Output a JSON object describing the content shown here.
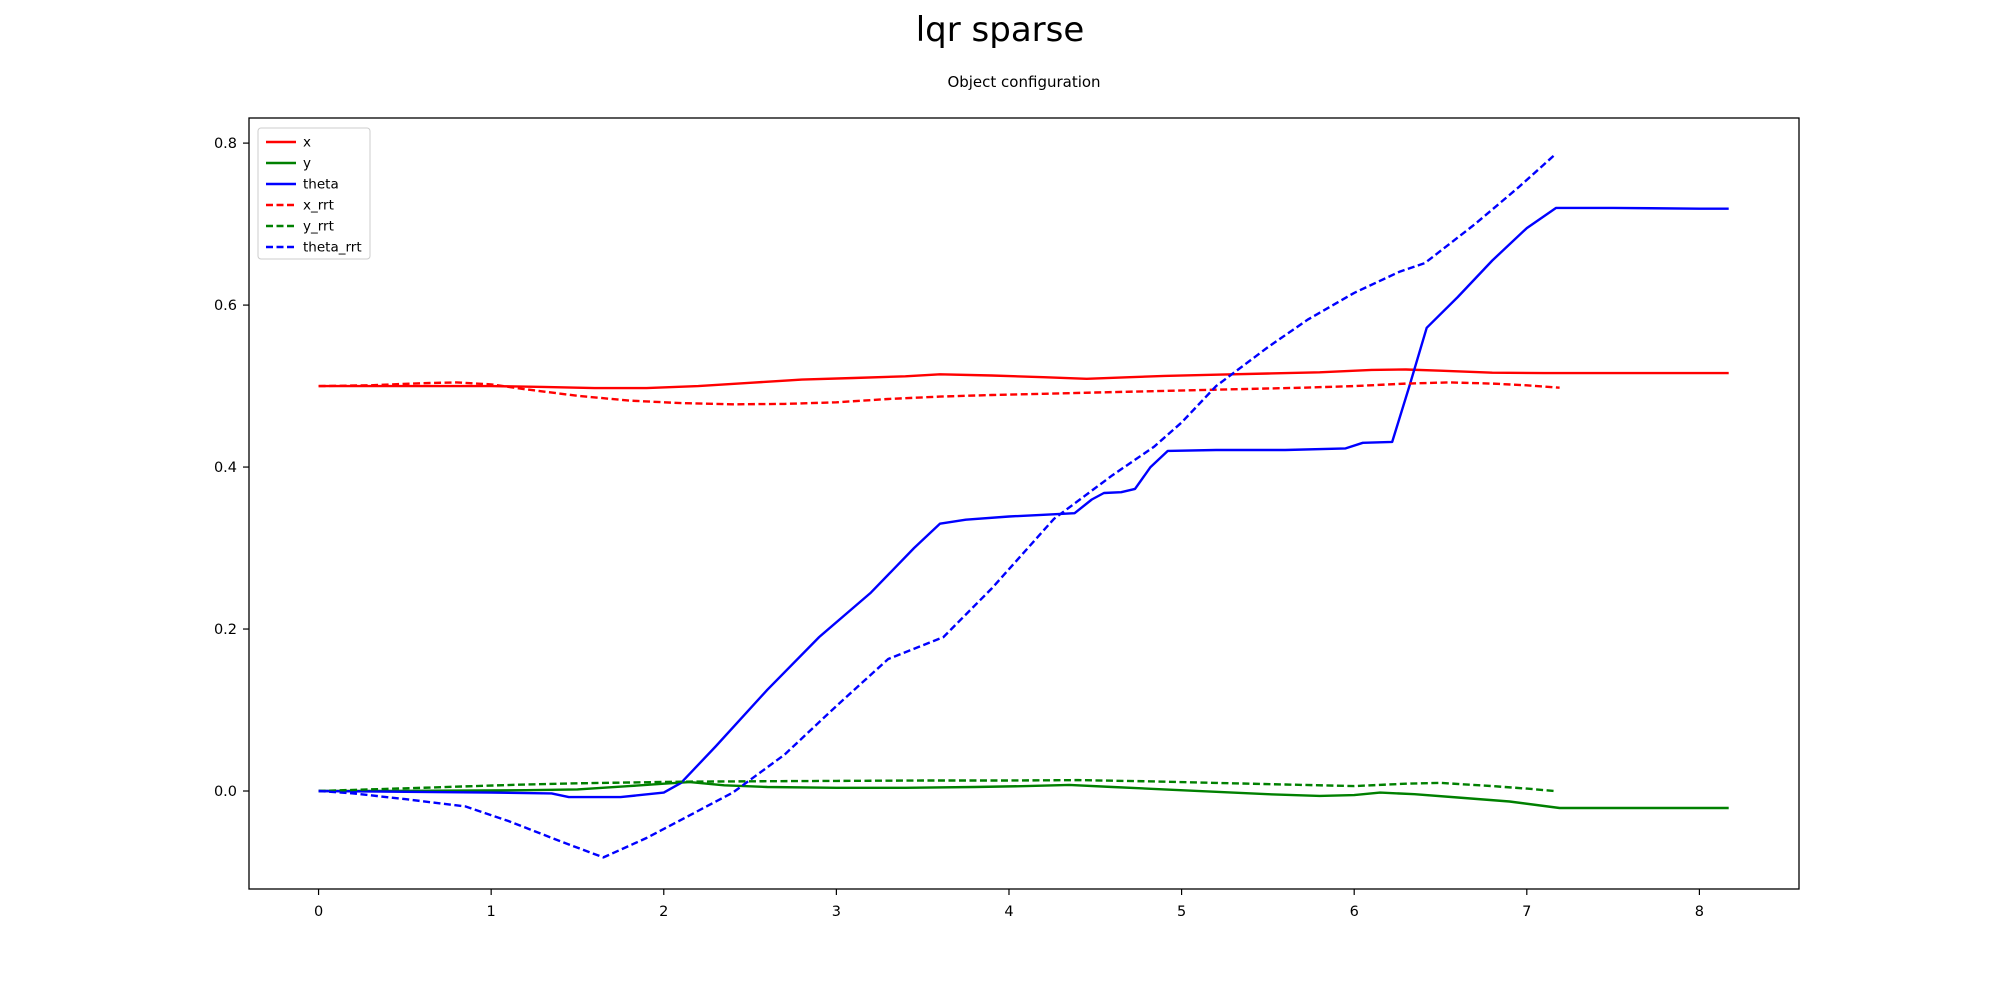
{
  "figure": {
    "title": "lqr sparse"
  },
  "chart_data": {
    "type": "line",
    "title": "Object configuration",
    "xlabel": "",
    "ylabel": "",
    "grid": false,
    "xlim": [
      -0.403,
      8.577
    ],
    "ylim": [
      -0.121,
      0.831
    ],
    "xticks": {
      "values": [
        0,
        1,
        2,
        3,
        4,
        5,
        6,
        7,
        8
      ],
      "labels": [
        "0",
        "1",
        "2",
        "3",
        "4",
        "5",
        "6",
        "7",
        "8"
      ]
    },
    "yticks": {
      "values": [
        0.0,
        0.2,
        0.4,
        0.6,
        0.8
      ],
      "labels": [
        "0.0",
        "0.2",
        "0.4",
        "0.6",
        "0.8"
      ]
    },
    "legend": {
      "position": "upper left"
    },
    "series": [
      {
        "name": "x",
        "color": "#ff0000",
        "dash": "solid",
        "points": [
          [
            0,
            0.5
          ],
          [
            0.5,
            0.5
          ],
          [
            1.0,
            0.5
          ],
          [
            1.3,
            0.499
          ],
          [
            1.6,
            0.4975
          ],
          [
            1.9,
            0.4975
          ],
          [
            2.2,
            0.5
          ],
          [
            2.5,
            0.504
          ],
          [
            2.8,
            0.508
          ],
          [
            3.1,
            0.51
          ],
          [
            3.4,
            0.512
          ],
          [
            3.6,
            0.5145
          ],
          [
            3.9,
            0.513
          ],
          [
            4.2,
            0.511
          ],
          [
            4.45,
            0.509
          ],
          [
            4.7,
            0.511
          ],
          [
            4.9,
            0.5125
          ],
          [
            5.2,
            0.514
          ],
          [
            5.5,
            0.5155
          ],
          [
            5.8,
            0.517
          ],
          [
            6.1,
            0.52
          ],
          [
            6.3,
            0.5205
          ],
          [
            6.5,
            0.519
          ],
          [
            6.8,
            0.5165
          ],
          [
            7.1,
            0.516
          ],
          [
            7.6,
            0.516
          ],
          [
            8.17,
            0.516
          ]
        ]
      },
      {
        "name": "y",
        "color": "#008000",
        "dash": "solid",
        "points": [
          [
            0,
            0.0
          ],
          [
            0.4,
            0.0
          ],
          [
            0.8,
            0.0005
          ],
          [
            1.2,
            0.001
          ],
          [
            1.5,
            0.002
          ],
          [
            1.8,
            0.006
          ],
          [
            2.0,
            0.009
          ],
          [
            2.15,
            0.011
          ],
          [
            2.35,
            0.007
          ],
          [
            2.6,
            0.005
          ],
          [
            3.0,
            0.004
          ],
          [
            3.4,
            0.004
          ],
          [
            3.8,
            0.005
          ],
          [
            4.1,
            0.006
          ],
          [
            4.35,
            0.0075
          ],
          [
            4.6,
            0.005
          ],
          [
            4.9,
            0.002
          ],
          [
            5.2,
            -0.001
          ],
          [
            5.5,
            -0.004
          ],
          [
            5.8,
            -0.006
          ],
          [
            6.0,
            -0.005
          ],
          [
            6.15,
            -0.002
          ],
          [
            6.35,
            -0.004
          ],
          [
            6.6,
            -0.008
          ],
          [
            6.9,
            -0.013
          ],
          [
            7.19,
            -0.021
          ],
          [
            7.6,
            -0.021
          ],
          [
            8.17,
            -0.021
          ]
        ]
      },
      {
        "name": "theta",
        "color": "#0000ff",
        "dash": "solid",
        "points": [
          [
            0,
            0.0
          ],
          [
            0.5,
            -0.001
          ],
          [
            1.0,
            -0.002
          ],
          [
            1.35,
            -0.003
          ],
          [
            1.45,
            -0.0075
          ],
          [
            1.75,
            -0.0075
          ],
          [
            2.0,
            -0.002
          ],
          [
            2.1,
            0.01
          ],
          [
            2.3,
            0.055
          ],
          [
            2.6,
            0.125
          ],
          [
            2.9,
            0.19
          ],
          [
            3.2,
            0.245
          ],
          [
            3.45,
            0.3
          ],
          [
            3.6,
            0.33
          ],
          [
            3.75,
            0.335
          ],
          [
            4.0,
            0.339
          ],
          [
            4.2,
            0.341
          ],
          [
            4.38,
            0.343
          ],
          [
            4.48,
            0.36
          ],
          [
            4.55,
            0.368
          ],
          [
            4.65,
            0.369
          ],
          [
            4.73,
            0.373
          ],
          [
            4.82,
            0.4
          ],
          [
            4.92,
            0.42
          ],
          [
            5.2,
            0.421
          ],
          [
            5.6,
            0.421
          ],
          [
            5.95,
            0.423
          ],
          [
            6.05,
            0.43
          ],
          [
            6.22,
            0.431
          ],
          [
            6.32,
            0.5
          ],
          [
            6.42,
            0.572
          ],
          [
            6.6,
            0.61
          ],
          [
            6.8,
            0.655
          ],
          [
            7.0,
            0.695
          ],
          [
            7.17,
            0.72
          ],
          [
            7.5,
            0.72
          ],
          [
            8.0,
            0.719
          ],
          [
            8.17,
            0.719
          ]
        ]
      },
      {
        "name": "x_rrt",
        "color": "#ff0000",
        "dash": "dashed",
        "points": [
          [
            0,
            0.5
          ],
          [
            0.3,
            0.501
          ],
          [
            0.6,
            0.5035
          ],
          [
            0.8,
            0.5045
          ],
          [
            1.0,
            0.502
          ],
          [
            1.2,
            0.496
          ],
          [
            1.5,
            0.488
          ],
          [
            1.8,
            0.482
          ],
          [
            2.1,
            0.479
          ],
          [
            2.4,
            0.4775
          ],
          [
            2.7,
            0.478
          ],
          [
            3.0,
            0.48
          ],
          [
            3.3,
            0.484
          ],
          [
            3.6,
            0.487
          ],
          [
            3.9,
            0.489
          ],
          [
            4.2,
            0.4905
          ],
          [
            4.5,
            0.492
          ],
          [
            4.8,
            0.4935
          ],
          [
            5.1,
            0.495
          ],
          [
            5.4,
            0.4965
          ],
          [
            5.7,
            0.498
          ],
          [
            6.0,
            0.5
          ],
          [
            6.3,
            0.503
          ],
          [
            6.55,
            0.5045
          ],
          [
            6.8,
            0.503
          ],
          [
            7.0,
            0.501
          ],
          [
            7.19,
            0.498
          ]
        ]
      },
      {
        "name": "y_rrt",
        "color": "#008000",
        "dash": "dashed",
        "points": [
          [
            0,
            0.0
          ],
          [
            0.3,
            0.002
          ],
          [
            0.6,
            0.004
          ],
          [
            0.9,
            0.006
          ],
          [
            1.2,
            0.008
          ],
          [
            1.5,
            0.0095
          ],
          [
            1.8,
            0.0105
          ],
          [
            2.1,
            0.0115
          ],
          [
            2.5,
            0.012
          ],
          [
            3.0,
            0.0125
          ],
          [
            3.5,
            0.013
          ],
          [
            4.0,
            0.013
          ],
          [
            4.4,
            0.0135
          ],
          [
            4.8,
            0.012
          ],
          [
            5.2,
            0.01
          ],
          [
            5.6,
            0.008
          ],
          [
            6.0,
            0.006
          ],
          [
            6.3,
            0.009
          ],
          [
            6.5,
            0.01
          ],
          [
            6.8,
            0.006
          ],
          [
            7.0,
            0.003
          ],
          [
            7.16,
            0.0
          ]
        ]
      },
      {
        "name": "theta_rrt",
        "color": "#0000ff",
        "dash": "dashed",
        "points": [
          [
            0,
            0.0
          ],
          [
            0.2,
            -0.003
          ],
          [
            0.5,
            -0.01
          ],
          [
            0.85,
            -0.019
          ],
          [
            1.1,
            -0.037
          ],
          [
            1.4,
            -0.062
          ],
          [
            1.65,
            -0.082
          ],
          [
            1.9,
            -0.058
          ],
          [
            2.15,
            -0.03
          ],
          [
            2.4,
            -0.002
          ],
          [
            2.7,
            0.045
          ],
          [
            3.0,
            0.105
          ],
          [
            3.3,
            0.163
          ],
          [
            3.62,
            0.19
          ],
          [
            3.9,
            0.25
          ],
          [
            4.26,
            0.336
          ],
          [
            4.6,
            0.39
          ],
          [
            4.84,
            0.425
          ],
          [
            5.0,
            0.455
          ],
          [
            5.2,
            0.5
          ],
          [
            5.5,
            0.548
          ],
          [
            5.73,
            0.582
          ],
          [
            6.0,
            0.615
          ],
          [
            6.26,
            0.641
          ],
          [
            6.41,
            0.652
          ],
          [
            6.7,
            0.7
          ],
          [
            6.95,
            0.745
          ],
          [
            7.17,
            0.787
          ]
        ]
      }
    ]
  }
}
